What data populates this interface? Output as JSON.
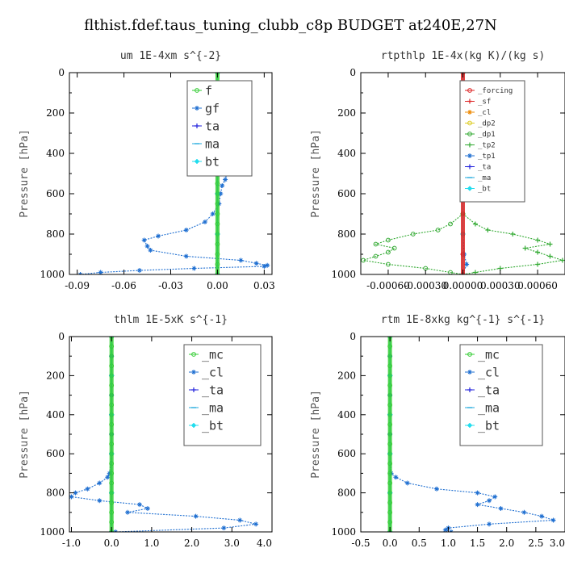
{
  "figure_title": "flthist.fdef.taus_tuning_clubb_c8p  BUDGET at240E,27N",
  "chart_data": [
    {
      "type": "line",
      "title": "um  1E-4xm s^{-2}",
      "ylabel": "Pressure [hPa]",
      "xlim": [
        -0.095,
        0.035
      ],
      "ylim": [
        1000,
        0
      ],
      "xticks": [
        "-0.09",
        "-0.06",
        "-0.03",
        "0.00",
        "0.03"
      ],
      "xtick_values": [
        -0.09,
        -0.06,
        -0.03,
        0.0,
        0.03
      ],
      "yticks": [
        "0",
        "200",
        "400",
        "600",
        "800",
        "1000"
      ],
      "ytick_values": [
        0,
        200,
        400,
        600,
        800,
        1000
      ],
      "legend_position": "top-right",
      "series": [
        {
          "name": "f",
          "color": "#33cc33",
          "marker": "circle",
          "pressure": [
            0,
            50,
            100,
            150,
            200,
            250,
            300,
            350,
            400,
            450,
            500,
            550,
            600,
            650,
            700,
            750,
            800,
            850,
            900,
            950,
            1000
          ],
          "values": [
            0,
            0,
            0,
            0,
            0,
            0,
            0,
            0,
            0,
            0,
            0,
            0,
            0,
            0,
            0,
            0,
            0,
            0,
            0,
            0,
            0
          ]
        },
        {
          "name": "gf",
          "color": "#1f6fd1",
          "marker": "star",
          "pressure": [
            0,
            50,
            100,
            130,
            160,
            200,
            250,
            300,
            350,
            400,
            450,
            500,
            530,
            560,
            600,
            650,
            700,
            740,
            780,
            810,
            830,
            860,
            880,
            910,
            930,
            945,
            955,
            960,
            970,
            980,
            990,
            1000
          ],
          "values": [
            0,
            0,
            0.001,
            -0.002,
            0.003,
            -0.001,
            0.002,
            -0.002,
            0.003,
            0.001,
            0.004,
            0.006,
            0.005,
            0.003,
            0.002,
            0.001,
            -0.003,
            -0.008,
            -0.02,
            -0.038,
            -0.047,
            -0.045,
            -0.043,
            -0.02,
            0.015,
            0.025,
            0.032,
            0.03,
            -0.015,
            -0.05,
            -0.075,
            -0.088
          ]
        },
        {
          "name": "ta",
          "color": "#2222dd",
          "marker": "plus",
          "pressure": [
            0,
            200,
            400,
            600,
            800,
            1000
          ],
          "values": [
            0,
            0,
            0,
            0,
            0,
            0
          ]
        },
        {
          "name": "ma",
          "color": "#22aadd",
          "marker": "dash",
          "pressure": [
            0,
            200,
            400,
            600,
            800,
            1000
          ],
          "values": [
            0,
            0,
            0,
            0,
            0,
            0
          ]
        },
        {
          "name": "bt",
          "color": "#22ddee",
          "marker": "diamond",
          "pressure": [
            0,
            200,
            400,
            600,
            800,
            1000
          ],
          "values": [
            0,
            0,
            0,
            0,
            0,
            0
          ]
        }
      ]
    },
    {
      "type": "line",
      "title": "rtpthlp  1E-4x(kg K)/(kg s)",
      "ylabel": "Pressure [hPa]",
      "xlim": [
        -0.00082,
        0.00082
      ],
      "ylim": [
        1000,
        0
      ],
      "xticks": [
        "-0.00060",
        "-0.00030",
        "0.00000",
        "0.00030",
        "0.00060"
      ],
      "xtick_values": [
        -0.0006,
        -0.0003,
        0.0,
        0.0003,
        0.0006
      ],
      "yticks": [
        "0",
        "200",
        "400",
        "600",
        "800",
        "1000"
      ],
      "ytick_values": [
        0,
        200,
        400,
        600,
        800,
        1000
      ],
      "legend_position": "top-right",
      "series": [
        {
          "name": "_forcing",
          "color": "#dd2222",
          "marker": "circle",
          "pressure": [
            0,
            100,
            200,
            300,
            400,
            500,
            600,
            700,
            800,
            900,
            1000
          ],
          "values": [
            0,
            0,
            0,
            0,
            0,
            0,
            0,
            0,
            0,
            0,
            0
          ]
        },
        {
          "name": "_sf",
          "color": "#dd2222",
          "marker": "plus",
          "pressure": [
            0,
            100,
            200,
            300,
            400,
            500,
            600,
            700,
            800,
            900,
            1000
          ],
          "values": [
            0,
            0,
            0,
            0,
            0,
            0,
            0,
            0,
            0,
            0,
            0
          ]
        },
        {
          "name": "_cl",
          "color": "#ee8800",
          "marker": "star",
          "pressure": [
            0,
            200,
            400,
            600,
            800,
            1000
          ],
          "values": [
            0,
            0,
            0,
            0,
            0,
            0
          ]
        },
        {
          "name": "_dp2",
          "color": "#ddcc22",
          "marker": "circle",
          "pressure": [
            0,
            200,
            400,
            600,
            800,
            1000
          ],
          "values": [
            0,
            0,
            0,
            0,
            0,
            0
          ]
        },
        {
          "name": "_dp1",
          "color": "#33aa33",
          "marker": "circle",
          "pressure": [
            0,
            200,
            400,
            600,
            700,
            750,
            780,
            800,
            830,
            850,
            870,
            890,
            910,
            930,
            950,
            970,
            990,
            1000
          ],
          "values": [
            0,
            0,
            0,
            0,
            0,
            -0.0001,
            -0.0002,
            -0.0004,
            -0.0006,
            -0.0007,
            -0.00055,
            -0.0006,
            -0.0007,
            -0.0008,
            -0.0006,
            -0.0003,
            -0.0001,
            0
          ]
        },
        {
          "name": "_tp2",
          "color": "#33aa33",
          "marker": "plus",
          "pressure": [
            0,
            200,
            400,
            600,
            700,
            750,
            780,
            800,
            830,
            850,
            870,
            890,
            910,
            930,
            950,
            970,
            990,
            1000
          ],
          "values": [
            0,
            0,
            0,
            0,
            0,
            0.0001,
            0.0002,
            0.0004,
            0.0006,
            0.0007,
            0.0005,
            0.0006,
            0.0007,
            0.0008,
            0.0006,
            0.0003,
            0.0001,
            0
          ]
        },
        {
          "name": "_tp1",
          "color": "#1f6fd1",
          "marker": "star",
          "pressure": [
            0,
            200,
            400,
            600,
            800,
            900,
            950,
            1000
          ],
          "values": [
            0,
            0,
            0,
            0,
            0,
            1e-05,
            3e-05,
            0
          ]
        },
        {
          "name": "_ta",
          "color": "#2222dd",
          "marker": "plus",
          "pressure": [
            0,
            200,
            400,
            600,
            800,
            1000
          ],
          "values": [
            0,
            0,
            0,
            0,
            0,
            0
          ]
        },
        {
          "name": "_ma",
          "color": "#22aadd",
          "marker": "dash",
          "pressure": [
            0,
            200,
            400,
            600,
            800,
            1000
          ],
          "values": [
            0,
            0,
            0,
            0,
            0,
            0
          ]
        },
        {
          "name": "_bt",
          "color": "#22ddee",
          "marker": "diamond",
          "pressure": [
            0,
            200,
            400,
            600,
            800,
            1000
          ],
          "values": [
            0,
            0,
            0,
            0,
            0,
            0
          ]
        }
      ]
    },
    {
      "type": "line",
      "title": "thlm  1E-5xK s^{-1}",
      "ylabel": "Pressure [hPa]",
      "xlim": [
        -1.05,
        4.0
      ],
      "ylim": [
        1000,
        0
      ],
      "xticks": [
        "-1.0",
        "0.0",
        "1.0",
        "2.0",
        "3.0",
        "4.0"
      ],
      "xtick_values": [
        -1,
        0,
        1,
        2,
        3,
        4
      ],
      "yticks": [
        "0",
        "200",
        "400",
        "600",
        "800",
        "1000"
      ],
      "ytick_values": [
        0,
        200,
        400,
        600,
        800,
        1000
      ],
      "legend_position": "top-right",
      "series": [
        {
          "name": "_mc",
          "color": "#33cc33",
          "marker": "circle",
          "pressure": [
            0,
            50,
            100,
            150,
            200,
            250,
            300,
            350,
            400,
            450,
            500,
            550,
            600,
            650,
            700,
            750,
            800,
            850,
            900,
            950,
            1000
          ],
          "values": [
            0,
            0,
            0,
            0,
            0,
            0,
            0,
            0,
            0,
            0,
            0,
            0,
            0,
            0,
            0,
            0,
            0,
            0,
            0,
            0,
            0
          ]
        },
        {
          "name": "_cl",
          "color": "#1f6fd1",
          "marker": "star",
          "pressure": [
            0,
            100,
            200,
            300,
            400,
            500,
            600,
            700,
            720,
            750,
            780,
            800,
            820,
            840,
            860,
            880,
            900,
            920,
            940,
            960,
            980,
            1000
          ],
          "values": [
            0,
            0,
            0,
            0,
            0,
            0,
            0,
            -0.05,
            -0.1,
            -0.3,
            -0.6,
            -0.9,
            -1.0,
            -0.3,
            0.7,
            0.9,
            0.4,
            2.1,
            3.2,
            3.6,
            2.8,
            0.1
          ]
        },
        {
          "name": "_ta",
          "color": "#2222dd",
          "marker": "plus",
          "pressure": [
            0,
            200,
            400,
            600,
            800,
            1000
          ],
          "values": [
            0,
            0,
            0,
            0,
            0,
            0
          ]
        },
        {
          "name": "_ma",
          "color": "#22aadd",
          "marker": "dash",
          "pressure": [
            0,
            200,
            400,
            600,
            800,
            1000
          ],
          "values": [
            0,
            0,
            0,
            0,
            0,
            0
          ]
        },
        {
          "name": "_bt",
          "color": "#22ddee",
          "marker": "diamond",
          "pressure": [
            0,
            200,
            400,
            600,
            800,
            1000
          ],
          "values": [
            0,
            0,
            0,
            0,
            0,
            0
          ]
        }
      ]
    },
    {
      "type": "line",
      "title": "rtm  1E-8xkg kg^{-1} s^{-1}",
      "ylabel": "Pressure [hPa]",
      "xlim": [
        -0.5,
        3.0
      ],
      "ylim": [
        1000,
        0
      ],
      "xticks": [
        "-0.5",
        "0.0",
        "0.5",
        "1.0",
        "1.5",
        "2.0",
        "2.5",
        "3.0"
      ],
      "xtick_values": [
        -0.5,
        0,
        0.5,
        1,
        1.5,
        2,
        2.5,
        3
      ],
      "yticks": [
        "0",
        "200",
        "400",
        "600",
        "800",
        "1000"
      ],
      "ytick_values": [
        0,
        200,
        400,
        600,
        800,
        1000
      ],
      "legend_position": "top-right",
      "series": [
        {
          "name": "_mc",
          "color": "#33cc33",
          "marker": "circle",
          "pressure": [
            0,
            50,
            100,
            150,
            200,
            250,
            300,
            350,
            400,
            450,
            500,
            550,
            600,
            650,
            700,
            750,
            800,
            850,
            900,
            950,
            1000
          ],
          "values": [
            0,
            0,
            0,
            0,
            0,
            0,
            0,
            0,
            0,
            0,
            0,
            0,
            0,
            0,
            0,
            0,
            0,
            0,
            0,
            0,
            0
          ]
        },
        {
          "name": "_cl",
          "color": "#1f6fd1",
          "marker": "star",
          "pressure": [
            0,
            100,
            200,
            300,
            400,
            500,
            600,
            700,
            720,
            750,
            780,
            800,
            820,
            840,
            860,
            880,
            900,
            920,
            940,
            960,
            980,
            990,
            1000
          ],
          "values": [
            0,
            0,
            0,
            0,
            0,
            0,
            0,
            0.02,
            0.1,
            0.3,
            0.8,
            1.5,
            1.8,
            1.7,
            1.5,
            1.9,
            2.3,
            2.6,
            2.8,
            1.7,
            1.0,
            0.95,
            1.05
          ]
        },
        {
          "name": "_ta",
          "color": "#2222dd",
          "marker": "plus",
          "pressure": [
            0,
            200,
            400,
            600,
            800,
            1000
          ],
          "values": [
            0,
            0,
            0,
            0,
            0,
            0
          ]
        },
        {
          "name": "_ma",
          "color": "#22aadd",
          "marker": "dash",
          "pressure": [
            0,
            200,
            400,
            600,
            800,
            1000
          ],
          "values": [
            0,
            0,
            0,
            0,
            0,
            0
          ]
        },
        {
          "name": "_bt",
          "color": "#22ddee",
          "marker": "diamond",
          "pressure": [
            0,
            200,
            400,
            600,
            800,
            1000
          ],
          "values": [
            0,
            0,
            0,
            0,
            0,
            0
          ]
        }
      ]
    }
  ]
}
